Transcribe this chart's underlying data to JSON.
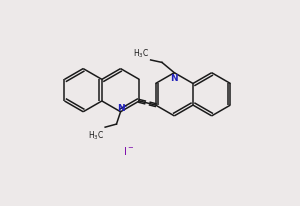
{
  "bg_color": "#ede9e9",
  "line_color": "#1a1a1a",
  "N_color": "#2222bb",
  "I_color": "#7700aa",
  "lw": 1.1,
  "doff": 0.013,
  "triple_off": 0.007,
  "r": 0.105,
  "figsize": [
    3.0,
    2.07
  ],
  "dpi": 100
}
